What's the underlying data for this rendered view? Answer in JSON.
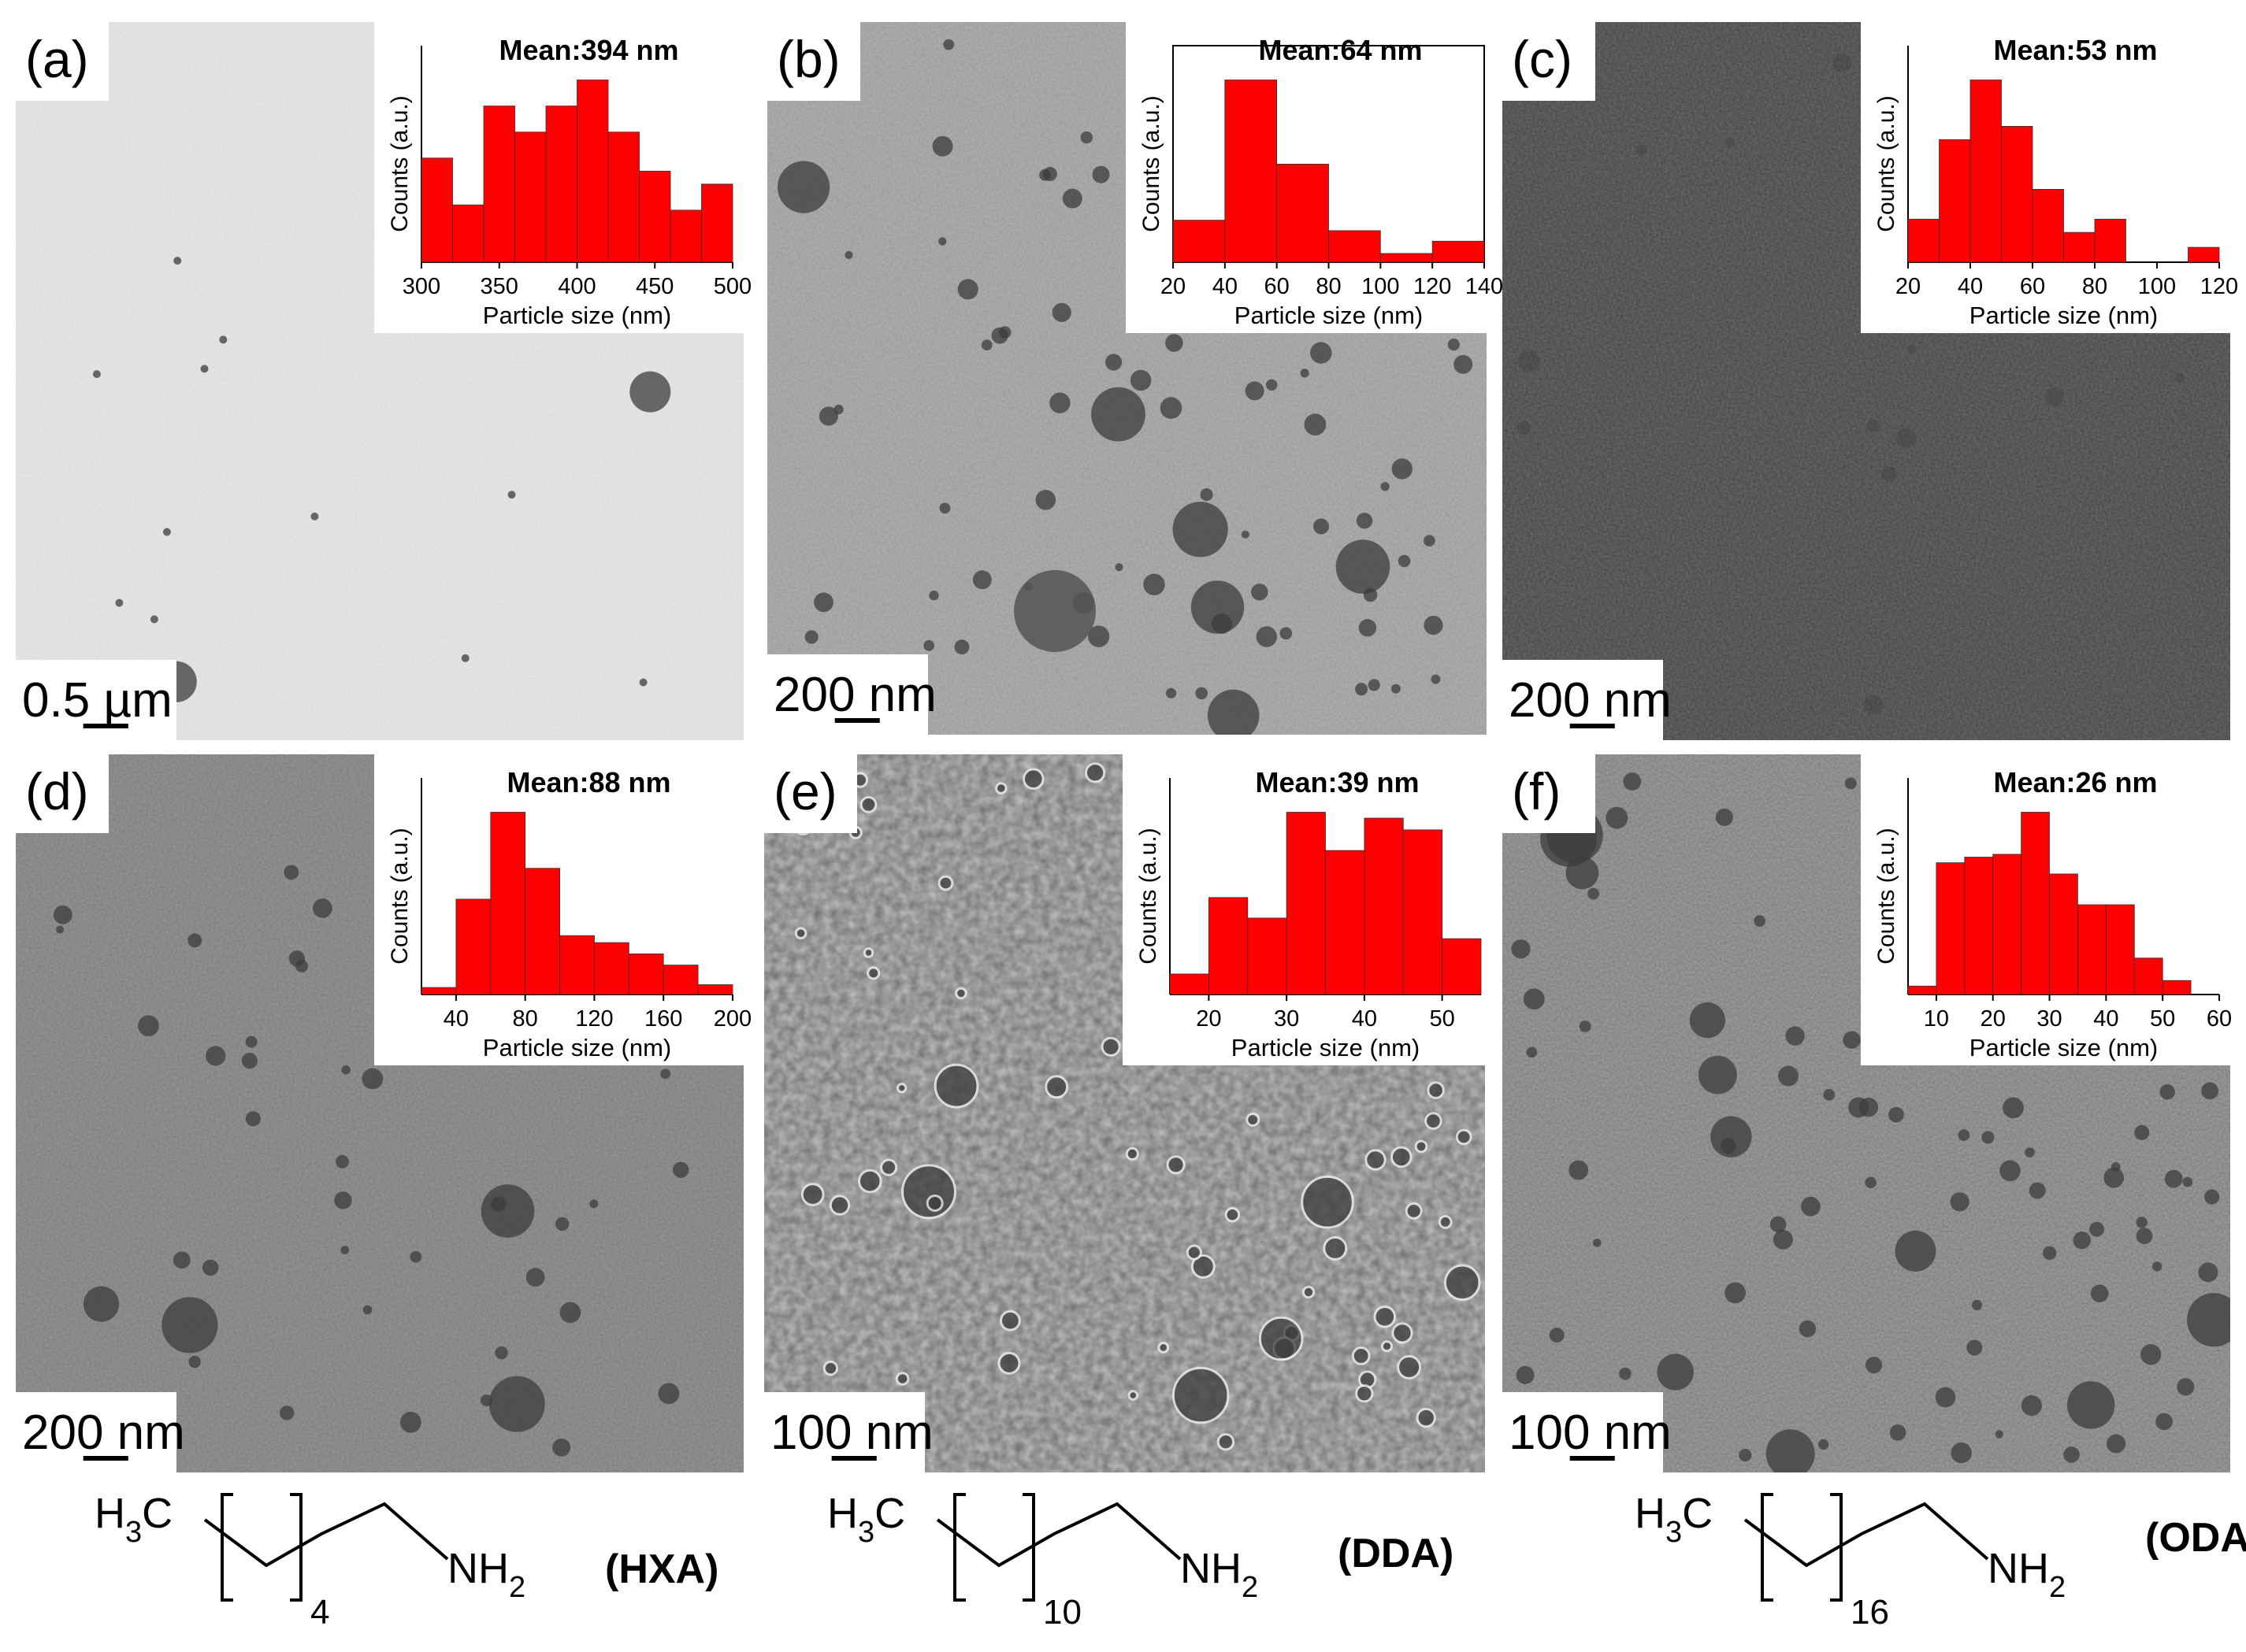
{
  "panels": [
    {
      "id": "a",
      "label": "(a)",
      "scale_bar": "0.5 µm",
      "background": "#e7e7e7",
      "noise": 0.05,
      "histogram": {
        "title": "Mean:394 nm",
        "xlabel": "Particle size (nm)",
        "ylabel": "Counts (a.u.)",
        "xlim": [
          300,
          500
        ],
        "ticks": [
          "300",
          "350",
          "400",
          "450",
          "500"
        ],
        "tick_values": [
          300,
          350,
          400,
          450,
          500
        ],
        "bin_edges": [
          300,
          320,
          340,
          360,
          380,
          400,
          420,
          440,
          460,
          480,
          500
        ],
        "counts": [
          4,
          2.2,
          6,
          5,
          6,
          7,
          5,
          3.5,
          2,
          3
        ]
      }
    },
    {
      "id": "b",
      "label": "(b)",
      "scale_bar": "200 nm",
      "background": "#b3b3b3",
      "noise": 0.15,
      "histogram": {
        "title": "Mean:64 nm",
        "xlabel": "Particle size (nm)",
        "ylabel": "Counts (a.u.)",
        "xlim": [
          20,
          140
        ],
        "ticks": [
          "20",
          "40",
          "60",
          "80",
          "100",
          "120",
          "140"
        ],
        "tick_values": [
          20,
          40,
          60,
          80,
          100,
          120,
          140
        ],
        "bin_edges": [
          20,
          40,
          60,
          80,
          100,
          120,
          140
        ],
        "counts": [
          1.2,
          5.2,
          2.8,
          0.9,
          0.25,
          0.6
        ]
      }
    },
    {
      "id": "c",
      "label": "(c)",
      "scale_bar": "200 nm",
      "background": "#6e6e6e",
      "noise": 0.4,
      "histogram": {
        "title": "Mean:53 nm",
        "xlabel": "Particle size (nm)",
        "ylabel": "Counts (a.u.)",
        "xlim": [
          20,
          120
        ],
        "ticks": [
          "20",
          "40",
          "60",
          "80",
          "100",
          "120"
        ],
        "tick_values": [
          20,
          40,
          60,
          80,
          100,
          120
        ],
        "bin_edges": [
          20,
          30,
          40,
          50,
          60,
          70,
          80,
          90,
          100,
          110,
          120
        ],
        "counts": [
          1.3,
          3.7,
          5.5,
          4.1,
          2.2,
          0.9,
          1.3,
          0,
          0,
          0.45
        ]
      }
    },
    {
      "id": "d",
      "label": "(d)",
      "scale_bar": "200 nm",
      "background": "#999999",
      "noise": 0.2,
      "histogram": {
        "title": "Mean:88 nm",
        "xlabel": "Particle size (nm)",
        "ylabel": "Counts (a.u.)",
        "xlim": [
          20,
          200
        ],
        "ticks": [
          "40",
          "80",
          "120",
          "160",
          "200"
        ],
        "tick_values": [
          40,
          80,
          120,
          160,
          200
        ],
        "bin_edges": [
          20,
          40,
          60,
          80,
          100,
          120,
          140,
          160,
          180,
          200
        ],
        "counts": [
          0.25,
          3.4,
          6.5,
          4.5,
          2.1,
          1.85,
          1.45,
          1.05,
          0.35
        ]
      }
    },
    {
      "id": "e",
      "label": "(e)",
      "scale_bar": "100 nm",
      "background": "#c4c4c4",
      "noise": 0.45,
      "histogram": {
        "title": "Mean:39 nm",
        "xlabel": "Particle size (nm)",
        "ylabel": "Counts (a.u.)",
        "xlim": [
          15,
          55
        ],
        "ticks": [
          "20",
          "30",
          "40",
          "50"
        ],
        "tick_values": [
          20,
          30,
          40,
          50
        ],
        "bin_edges": [
          15,
          20,
          25,
          30,
          35,
          40,
          45,
          50,
          55
        ],
        "counts": [
          0.7,
          3.3,
          2.6,
          6.2,
          4.9,
          6,
          5.6,
          1.9
        ]
      }
    },
    {
      "id": "f",
      "label": "(f)",
      "scale_bar": "100 nm",
      "background": "#a2a2a2",
      "noise": 0.25,
      "histogram": {
        "title": "Mean:26 nm",
        "xlabel": "Particle size (nm)",
        "ylabel": "Counts (a.u.)",
        "xlim": [
          5,
          60
        ],
        "ticks": [
          "10",
          "20",
          "30",
          "40",
          "50",
          "60"
        ],
        "tick_values": [
          10,
          20,
          30,
          40,
          50,
          60
        ],
        "bin_edges": [
          5,
          10,
          15,
          20,
          25,
          30,
          35,
          40,
          45,
          50,
          55
        ],
        "counts": [
          0.3,
          4.7,
          4.9,
          5,
          6.5,
          4.3,
          3.2,
          3.2,
          1.3,
          0.5
        ]
      }
    }
  ],
  "structures": [
    {
      "left_group": "H3C",
      "left_main": "H",
      "left_sub": "3",
      "left_end": "C",
      "repeat": "4",
      "amine_main": "NH",
      "amine_sub": "2",
      "abbr": "(HXA)"
    },
    {
      "left_group": "H3C",
      "left_main": "H",
      "left_sub": "3",
      "left_end": "C",
      "repeat": "10",
      "amine_main": "NH",
      "amine_sub": "2",
      "abbr": "(DDA)"
    },
    {
      "left_group": "H3C",
      "left_main": "H",
      "left_sub": "3",
      "left_end": "C",
      "repeat": "16",
      "amine_main": "NH",
      "amine_sub": "2",
      "abbr": "(ODA)"
    }
  ],
  "colors": {
    "histogram_bar": "#ff0000",
    "bar_edge": "#333333",
    "particle": "#3c3c3c",
    "text": "#000000"
  }
}
